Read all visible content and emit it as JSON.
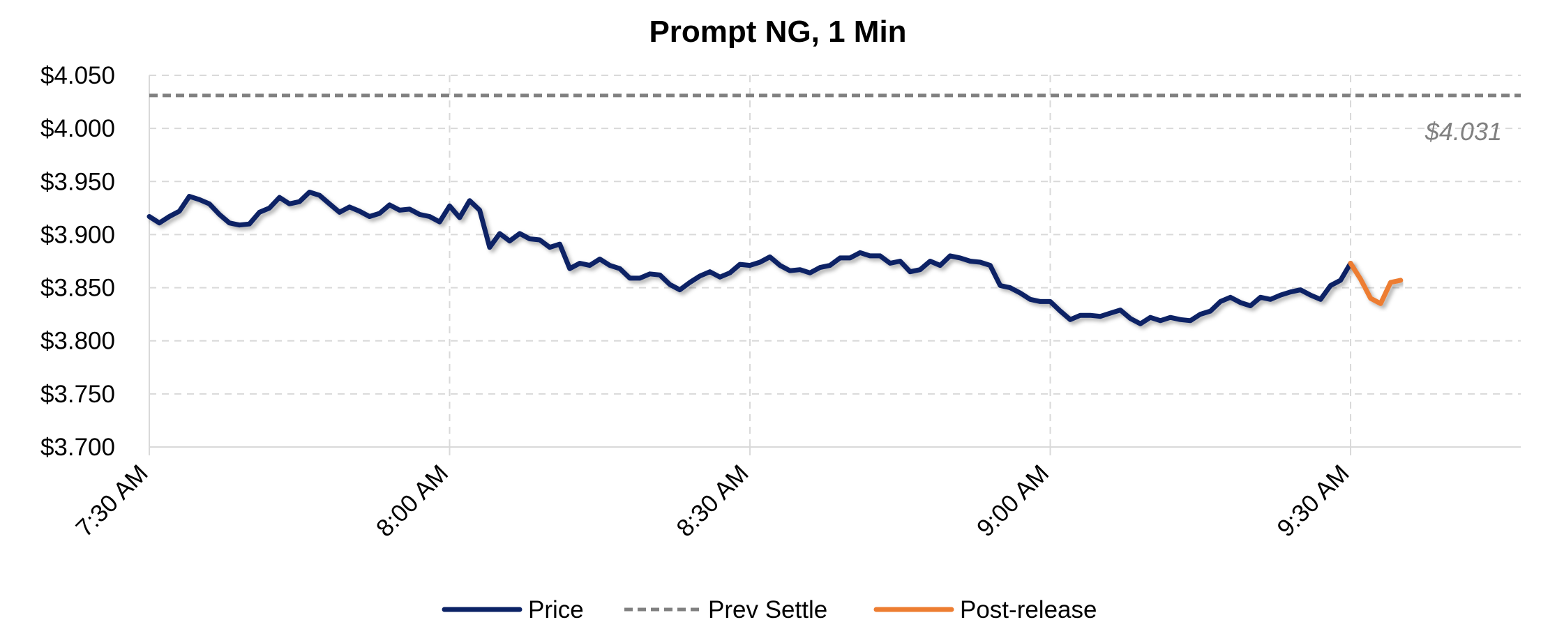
{
  "chart_data": {
    "type": "line",
    "title": "Prompt NG, 1 Min",
    "xlabel": "",
    "ylabel": "",
    "x_range_minutes": [
      0,
      137
    ],
    "ylim": [
      3.7,
      4.05
    ],
    "grid": true,
    "legend_position": "bottom",
    "y_ticks": [
      {
        "value": 3.7,
        "label": "$3.700"
      },
      {
        "value": 3.75,
        "label": "$3.750"
      },
      {
        "value": 3.8,
        "label": "$3.800"
      },
      {
        "value": 3.85,
        "label": "$3.850"
      },
      {
        "value": 3.9,
        "label": "$3.900"
      },
      {
        "value": 3.95,
        "label": "$3.950"
      },
      {
        "value": 4.0,
        "label": "$4.000"
      },
      {
        "value": 4.05,
        "label": "$4.050"
      }
    ],
    "x_ticks": [
      {
        "minute": 0,
        "label": "7:30 AM"
      },
      {
        "minute": 30,
        "label": "8:00 AM"
      },
      {
        "minute": 60,
        "label": "8:30 AM"
      },
      {
        "minute": 90,
        "label": "9:00 AM"
      },
      {
        "minute": 120,
        "label": "9:30 AM"
      }
    ],
    "reference_line": {
      "name": "Prev Settle",
      "value": 4.031,
      "label": "$4.031",
      "color": "#808080"
    },
    "series": [
      {
        "name": "Price",
        "color": "#0b2265",
        "x": [
          0,
          1,
          2,
          3,
          4,
          5,
          6,
          7,
          8,
          9,
          10,
          11,
          12,
          13,
          14,
          15,
          16,
          17,
          18,
          19,
          20,
          21,
          22,
          23,
          24,
          25,
          26,
          27,
          28,
          29,
          30,
          31,
          32,
          33,
          34,
          35,
          36,
          37,
          38,
          39,
          40,
          41,
          42,
          43,
          44,
          45,
          46,
          47,
          48,
          49,
          50,
          51,
          52,
          53,
          54,
          55,
          56,
          57,
          58,
          59,
          60,
          61,
          62,
          63,
          64,
          65,
          66,
          67,
          68,
          69,
          70,
          71,
          72,
          73,
          74,
          75,
          76,
          77,
          78,
          79,
          80,
          81,
          82,
          83,
          84,
          85,
          86,
          87,
          88,
          89,
          90,
          91,
          92,
          93,
          94,
          95,
          96,
          97,
          98,
          99,
          100,
          101,
          102,
          103,
          104,
          105,
          106,
          107,
          108,
          109,
          110,
          111,
          112,
          113,
          114,
          115,
          116,
          117,
          118,
          119,
          120
        ],
        "y": [
          3.917,
          3.911,
          3.917,
          3.922,
          3.936,
          3.933,
          3.929,
          3.919,
          3.911,
          3.909,
          3.91,
          3.921,
          3.925,
          3.935,
          3.929,
          3.931,
          3.94,
          3.937,
          3.929,
          3.921,
          3.926,
          3.922,
          3.917,
          3.92,
          3.928,
          3.923,
          3.924,
          3.919,
          3.917,
          3.912,
          3.927,
          3.916,
          3.932,
          3.923,
          3.888,
          3.901,
          3.894,
          3.901,
          3.896,
          3.895,
          3.888,
          3.891,
          3.868,
          3.873,
          3.871,
          3.877,
          3.871,
          3.868,
          3.859,
          3.859,
          3.863,
          3.862,
          3.853,
          3.848,
          3.855,
          3.861,
          3.865,
          3.86,
          3.864,
          3.872,
          3.871,
          3.874,
          3.879,
          3.871,
          3.866,
          3.867,
          3.864,
          3.869,
          3.871,
          3.878,
          3.878,
          3.883,
          3.88,
          3.88,
          3.873,
          3.875,
          3.865,
          3.867,
          3.875,
          3.871,
          3.88,
          3.878,
          3.875,
          3.874,
          3.871,
          3.852,
          3.85,
          3.845,
          3.839,
          3.837,
          3.837,
          3.828,
          3.82,
          3.824,
          3.824,
          3.823,
          3.826,
          3.829,
          3.821,
          3.816,
          3.822,
          3.819,
          3.822,
          3.82,
          3.819,
          3.825,
          3.828,
          3.837,
          3.841,
          3.836,
          3.833,
          3.841,
          3.839,
          3.843,
          3.846,
          3.848,
          3.843,
          3.839,
          3.852,
          3.857,
          3.873
        ]
      },
      {
        "name": "Post-release",
        "color": "#ed7d31",
        "x": [
          120,
          121,
          122,
          123,
          124,
          125
        ],
        "y": [
          3.873,
          3.858,
          3.84,
          3.835,
          3.855,
          3.857
        ]
      }
    ]
  },
  "legend": {
    "items": [
      {
        "label": "Price",
        "color": "#0b2265",
        "style": "solid"
      },
      {
        "label": "Prev Settle",
        "color": "#808080",
        "style": "dashed"
      },
      {
        "label": "Post-release",
        "color": "#ed7d31",
        "style": "solid"
      }
    ]
  }
}
